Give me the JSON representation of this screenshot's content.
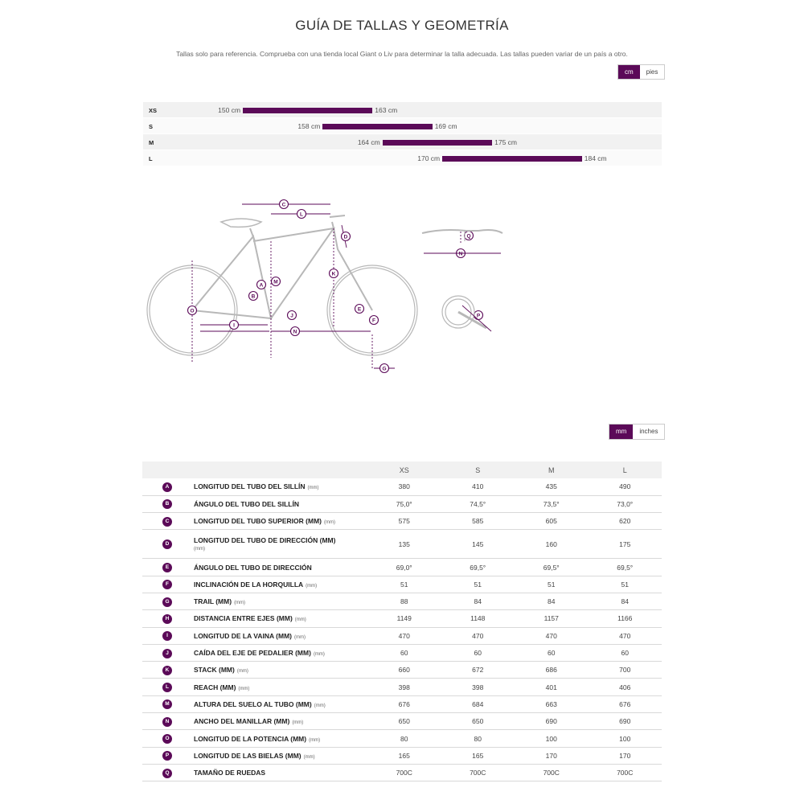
{
  "title": "GUÍA DE TALLAS Y GEOMETRÍA",
  "subtitle": "Tallas solo para referencia. Comprueba con una tienda local Giant o Liv para determinar la talla adecuada. Las tallas pueden variar de un país a otro.",
  "accent_color": "#5b0a58",
  "height_units": {
    "active": "cm",
    "other": "pies"
  },
  "geometry_units": {
    "active": "mm",
    "other": "inches"
  },
  "size_chart": [
    {
      "size": "XS",
      "min": "150 cm",
      "max": "163 cm",
      "min_cm": 150,
      "max_cm": 163
    },
    {
      "size": "S",
      "min": "158 cm",
      "max": "169 cm",
      "min_cm": 158,
      "max_cm": 169
    },
    {
      "size": "M",
      "min": "164 cm",
      "max": "175 cm",
      "min_cm": 164,
      "max_cm": 175
    },
    {
      "size": "L",
      "min": "170 cm",
      "max": "184 cm",
      "min_cm": 170,
      "max_cm": 184
    }
  ],
  "diagram_letters": [
    "A",
    "B",
    "C",
    "D",
    "E",
    "F",
    "G",
    "I",
    "J",
    "K",
    "L",
    "M",
    "N",
    "O",
    "P",
    "Q"
  ],
  "table": {
    "columns": [
      "XS",
      "S",
      "M",
      "L"
    ],
    "rows": [
      {
        "letter": "A",
        "label": "LONGITUD DEL TUBO DEL SILLÍN",
        "unit": "(mm)",
        "values": [
          "380",
          "410",
          "435",
          "490"
        ]
      },
      {
        "letter": "B",
        "label": "ÁNGULO DEL TUBO DEL SILLÍN",
        "unit": "",
        "values": [
          "75,0°",
          "74,5°",
          "73,5°",
          "73,0°"
        ]
      },
      {
        "letter": "C",
        "label": "LONGITUD DEL TUBO SUPERIOR (MM)",
        "unit": "(mm)",
        "values": [
          "575",
          "585",
          "605",
          "620"
        ]
      },
      {
        "letter": "D",
        "label": "LONGITUD DEL TUBO DE DIRECCIÓN (MM)",
        "unit": "(mm)",
        "values": [
          "135",
          "145",
          "160",
          "175"
        ]
      },
      {
        "letter": "E",
        "label": "ÁNGULO DEL TUBO DE DIRECCIÓN",
        "unit": "",
        "values": [
          "69,0°",
          "69,5°",
          "69,5°",
          "69,5°"
        ]
      },
      {
        "letter": "F",
        "label": "INCLINACIÓN DE LA HORQUILLA",
        "unit": "(mm)",
        "values": [
          "51",
          "51",
          "51",
          "51"
        ]
      },
      {
        "letter": "G",
        "label": "TRAIL (MM)",
        "unit": "(mm)",
        "values": [
          "88",
          "84",
          "84",
          "84"
        ]
      },
      {
        "letter": "H",
        "label": "DISTANCIA ENTRE EJES (MM)",
        "unit": "(mm)",
        "values": [
          "1149",
          "1148",
          "1157",
          "1166"
        ]
      },
      {
        "letter": "I",
        "label": "LONGITUD DE LA VAINA (MM)",
        "unit": "(mm)",
        "values": [
          "470",
          "470",
          "470",
          "470"
        ]
      },
      {
        "letter": "J",
        "label": "CAÍDA DEL EJE DE PEDALIER (MM)",
        "unit": "(mm)",
        "values": [
          "60",
          "60",
          "60",
          "60"
        ]
      },
      {
        "letter": "K",
        "label": "STACK (MM)",
        "unit": "(mm)",
        "values": [
          "660",
          "672",
          "686",
          "700"
        ]
      },
      {
        "letter": "L",
        "label": "REACH (MM)",
        "unit": "(mm)",
        "values": [
          "398",
          "398",
          "401",
          "406"
        ]
      },
      {
        "letter": "M",
        "label": "ALTURA DEL SUELO AL TUBO (MM)",
        "unit": "(mm)",
        "values": [
          "676",
          "684",
          "663",
          "676"
        ]
      },
      {
        "letter": "N",
        "label": "ANCHO DEL MANILLAR (MM)",
        "unit": "(mm)",
        "values": [
          "650",
          "650",
          "690",
          "690"
        ]
      },
      {
        "letter": "O",
        "label": "LONGITUD DE LA POTENCIA (MM)",
        "unit": "(mm)",
        "values": [
          "80",
          "80",
          "100",
          "100"
        ]
      },
      {
        "letter": "P",
        "label": "LONGITUD DE LAS BIELAS (MM)",
        "unit": "(mm)",
        "values": [
          "165",
          "165",
          "170",
          "170"
        ]
      },
      {
        "letter": "Q",
        "label": "TAMAÑO DE RUEDAS",
        "unit": "",
        "values": [
          "700C",
          "700C",
          "700C",
          "700C"
        ]
      }
    ]
  }
}
